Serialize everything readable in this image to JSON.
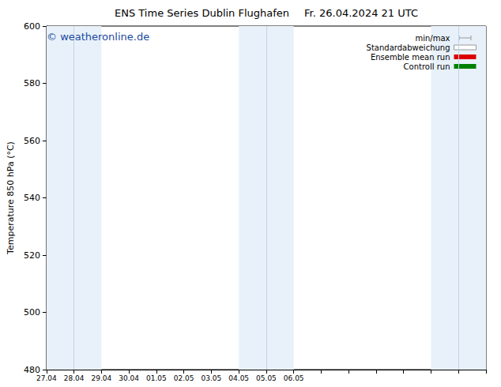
{
  "chart_data": {
    "type": "line",
    "title": "ENS Time Series Dublin Flughafen",
    "subtitle": "Fr. 26.04.2024 21 UTC",
    "annotation": "© weatheronline.de",
    "y_label": "Temperature 850 hPa (°C)",
    "categories": [
      "27.04",
      "28.04",
      "29.04",
      "30.04",
      "01.05",
      "02.05",
      "03.05",
      "04.05",
      "05.05",
      "06.05",
      null,
      null,
      null,
      null,
      null,
      null,
      null
    ],
    "series": [
      {
        "name": "min/max",
        "type": "range",
        "color": "#999999",
        "values": [
          null,
          null,
          null,
          null,
          null,
          null,
          null,
          null,
          null,
          null,
          null,
          null,
          null,
          null,
          null,
          null,
          null
        ]
      },
      {
        "name": "Standardabweichung",
        "type": "band",
        "color": "#999999",
        "values": [
          null,
          null,
          null,
          null,
          null,
          null,
          null,
          null,
          null,
          null,
          null,
          null,
          null,
          null,
          null,
          null,
          null
        ]
      },
      {
        "name": "Ensemble mean run",
        "type": "line",
        "color": "#dd0000",
        "values": [
          null,
          null,
          null,
          null,
          null,
          null,
          null,
          null,
          null,
          null,
          null,
          null,
          null,
          null,
          null,
          null,
          null
        ]
      },
      {
        "name": "Controll run",
        "type": "line",
        "color": "#008000",
        "values": [
          null,
          null,
          null,
          null,
          null,
          null,
          null,
          null,
          null,
          null,
          null,
          null,
          null,
          null,
          null,
          null,
          null
        ]
      }
    ],
    "shaded_ranges": [
      [
        0,
        2
      ],
      [
        7,
        9
      ],
      [
        14,
        16
      ]
    ],
    "ylim": [
      480,
      600
    ],
    "yticks": [
      480,
      500,
      520,
      540,
      560,
      580,
      600
    ],
    "grid": false,
    "legend": "upper right"
  }
}
